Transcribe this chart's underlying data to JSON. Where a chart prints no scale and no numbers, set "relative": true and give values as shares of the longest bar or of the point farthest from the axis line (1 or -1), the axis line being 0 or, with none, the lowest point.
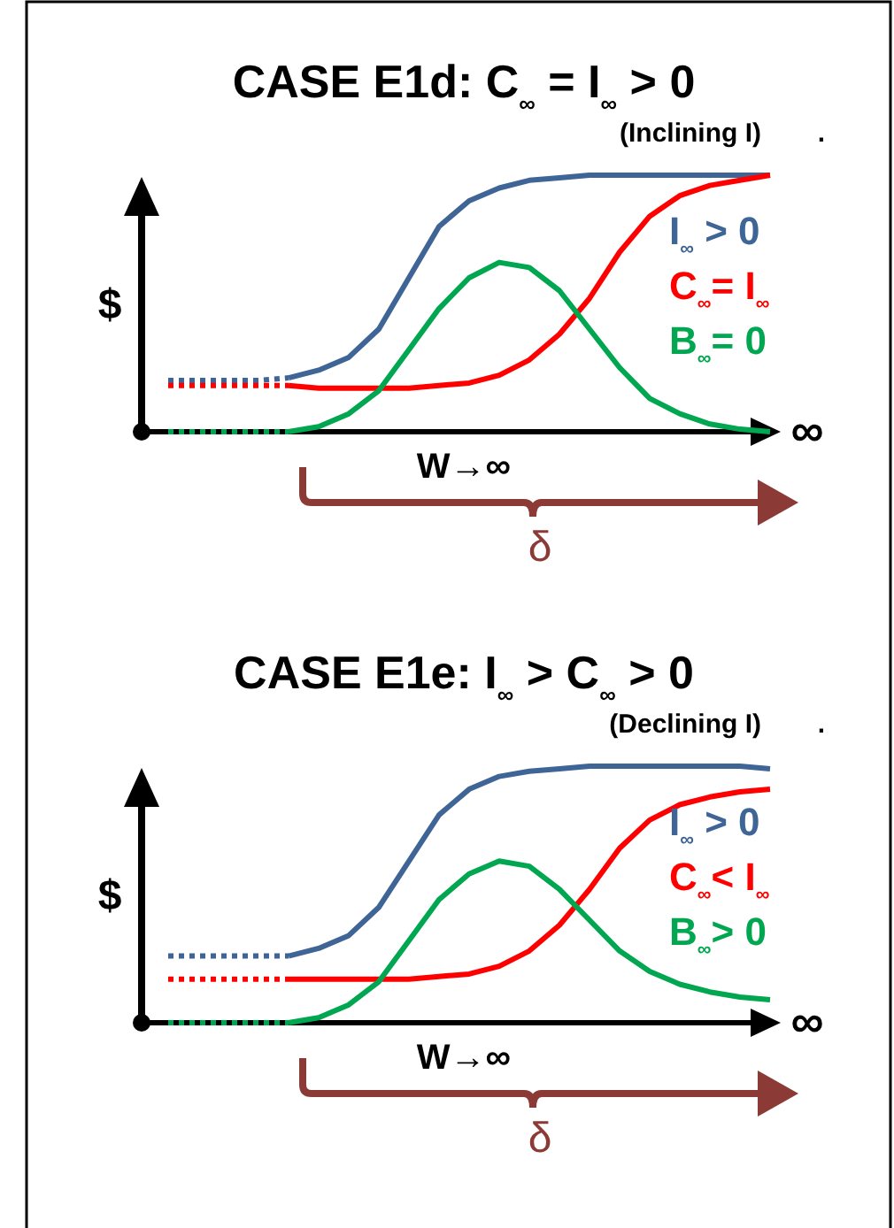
{
  "chart_data": [
    {
      "type": "line",
      "title": "CASE E1d: C$_{∞}$ = I$_{∞}$ > 0",
      "subtitle": "(Inclining I)",
      "xlabel": "W→∞",
      "ylabel": "$",
      "relative": true,
      "annotations": [
        "∞",
        "δ",
        "."
      ],
      "categories": [
        null,
        null,
        null,
        null,
        null,
        null,
        null,
        null,
        null,
        null,
        null,
        null,
        null,
        null,
        null,
        null,
        null,
        null,
        null,
        null,
        null
      ],
      "series": [
        {
          "color": "#3f6596",
          "line_style": "dotted",
          "values": [
            0.2,
            0.2,
            0.2,
            0.2,
            0.21,
            null,
            null,
            null,
            null,
            null,
            null,
            null,
            null,
            null,
            null,
            null,
            null,
            null,
            null,
            null,
            null
          ]
        },
        {
          "color": "#ff0000",
          "line_style": "dotted",
          "values": [
            0.18,
            0.18,
            0.18,
            0.18,
            0.18,
            null,
            null,
            null,
            null,
            null,
            null,
            null,
            null,
            null,
            null,
            null,
            null,
            null,
            null,
            null,
            null
          ]
        },
        {
          "color": "#00a650",
          "line_style": "dotted",
          "values": [
            0,
            0,
            0,
            0,
            0,
            null,
            null,
            null,
            null,
            null,
            null,
            null,
            null,
            null,
            null,
            null,
            null,
            null,
            null,
            null,
            null
          ]
        },
        {
          "name": "I$_{∞}$ > 0",
          "color": "#3f6596",
          "line_style": "solid",
          "values": [
            null,
            null,
            null,
            null,
            0.21,
            0.24,
            0.29,
            0.4,
            0.6,
            0.8,
            0.9,
            0.95,
            0.98,
            0.99,
            1,
            1,
            1,
            1,
            1,
            1,
            1
          ]
        },
        {
          "name": "C$_{∞}$= I$_{∞}$",
          "color": "#ff0000",
          "line_style": "solid",
          "values": [
            null,
            null,
            null,
            null,
            0.18,
            0.17,
            0.17,
            0.17,
            0.17,
            0.18,
            0.19,
            0.22,
            0.28,
            0.38,
            0.52,
            0.7,
            0.84,
            0.92,
            0.96,
            0.98,
            1
          ]
        },
        {
          "name": "B$_{∞}$= 0",
          "color": "#00a650",
          "line_style": "solid",
          "values": [
            null,
            null,
            null,
            null,
            0,
            0.02,
            0.07,
            0.16,
            0.32,
            0.48,
            0.6,
            0.66,
            0.64,
            0.55,
            0.4,
            0.25,
            0.13,
            0.07,
            0.03,
            0.01,
            0
          ]
        }
      ]
    },
    {
      "type": "line",
      "title": "CASE E1e: I$_{∞}$ > C$_{∞}$ > 0",
      "subtitle": "(Declining I)",
      "xlabel": "W→∞",
      "ylabel": "$",
      "relative": true,
      "annotations": [
        "∞",
        "δ",
        "."
      ],
      "categories": [
        null,
        null,
        null,
        null,
        null,
        null,
        null,
        null,
        null,
        null,
        null,
        null,
        null,
        null,
        null,
        null,
        null,
        null,
        null,
        null,
        null
      ],
      "series": [
        {
          "color": "#3f6596",
          "line_style": "dotted",
          "values": [
            0.26,
            0.26,
            0.26,
            0.26,
            0.26,
            null,
            null,
            null,
            null,
            null,
            null,
            null,
            null,
            null,
            null,
            null,
            null,
            null,
            null,
            null,
            null
          ]
        },
        {
          "color": "#ff0000",
          "line_style": "dotted",
          "values": [
            0.17,
            0.17,
            0.17,
            0.17,
            0.17,
            null,
            null,
            null,
            null,
            null,
            null,
            null,
            null,
            null,
            null,
            null,
            null,
            null,
            null,
            null,
            null
          ]
        },
        {
          "color": "#00a650",
          "line_style": "dotted",
          "values": [
            0,
            0,
            0,
            0,
            0,
            null,
            null,
            null,
            null,
            null,
            null,
            null,
            null,
            null,
            null,
            null,
            null,
            null,
            null,
            null,
            null
          ]
        },
        {
          "name": "I$_{∞}$ > 0",
          "color": "#3f6596",
          "line_style": "solid",
          "values": [
            null,
            null,
            null,
            null,
            0.26,
            0.29,
            0.34,
            0.45,
            0.63,
            0.81,
            0.91,
            0.96,
            0.98,
            0.99,
            1,
            1,
            1,
            1,
            1,
            1,
            0.99
          ]
        },
        {
          "name": "C$_{∞}$< I$_{∞}$",
          "color": "#ff0000",
          "line_style": "solid",
          "values": [
            null,
            null,
            null,
            null,
            0.17,
            0.17,
            0.17,
            0.17,
            0.17,
            0.18,
            0.19,
            0.22,
            0.28,
            0.38,
            0.52,
            0.68,
            0.79,
            0.85,
            0.88,
            0.9,
            0.91
          ]
        },
        {
          "name": "B$_{∞}$> 0",
          "color": "#00a650",
          "line_style": "solid",
          "values": [
            null,
            null,
            null,
            null,
            0,
            0.02,
            0.07,
            0.16,
            0.32,
            0.48,
            0.58,
            0.63,
            0.61,
            0.52,
            0.4,
            0.28,
            0.2,
            0.15,
            0.12,
            0.1,
            0.09
          ]
        }
      ]
    }
  ]
}
